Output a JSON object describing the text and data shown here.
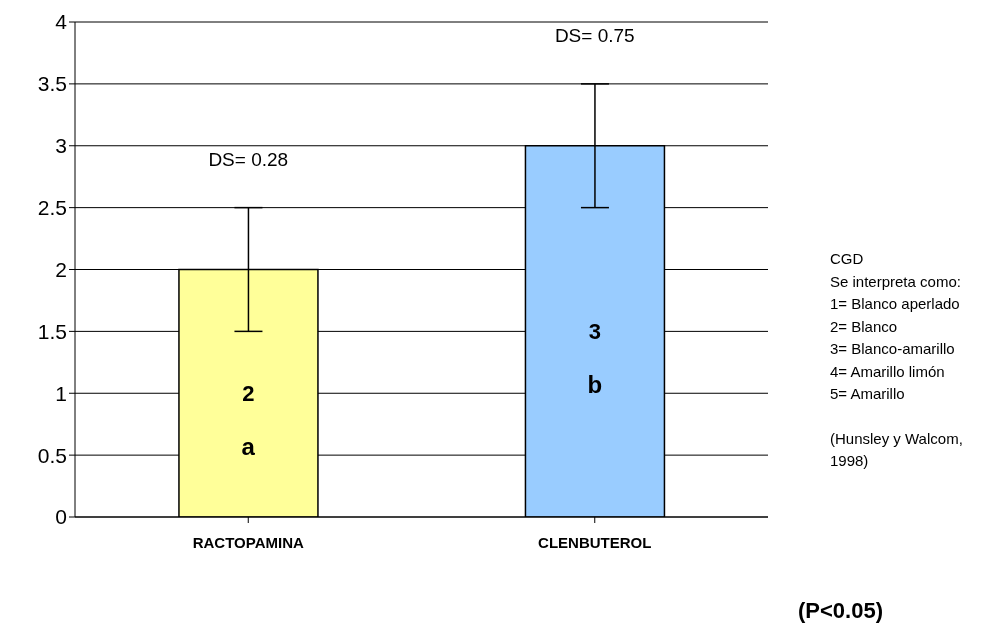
{
  "chart_data": {
    "type": "bar",
    "categories": [
      "RACTOPAMINA",
      "CLENBUTEROL"
    ],
    "values": [
      2,
      3
    ],
    "colors": [
      "#ffff99",
      "#99ccff"
    ],
    "errors": [
      0.5,
      0.5
    ],
    "value_labels": [
      "2",
      "3"
    ],
    "ylim": [
      0,
      4
    ],
    "yticks": [
      0,
      0.5,
      1,
      1.5,
      2,
      2.5,
      3,
      3.5,
      4
    ],
    "grid": "y",
    "annotations": [
      "DS= 0.28",
      "DS= 0.75",
      "a",
      "b",
      "CGD",
      "Se interpreta como:",
      "1= Blanco aperlado",
      "2= Blanco",
      "3= Blanco-amarillo",
      "4= Amarillo limón",
      "5= Amarillo",
      "(Hunsley y Walcom, 1998)",
      "(P<0.05)"
    ]
  }
}
